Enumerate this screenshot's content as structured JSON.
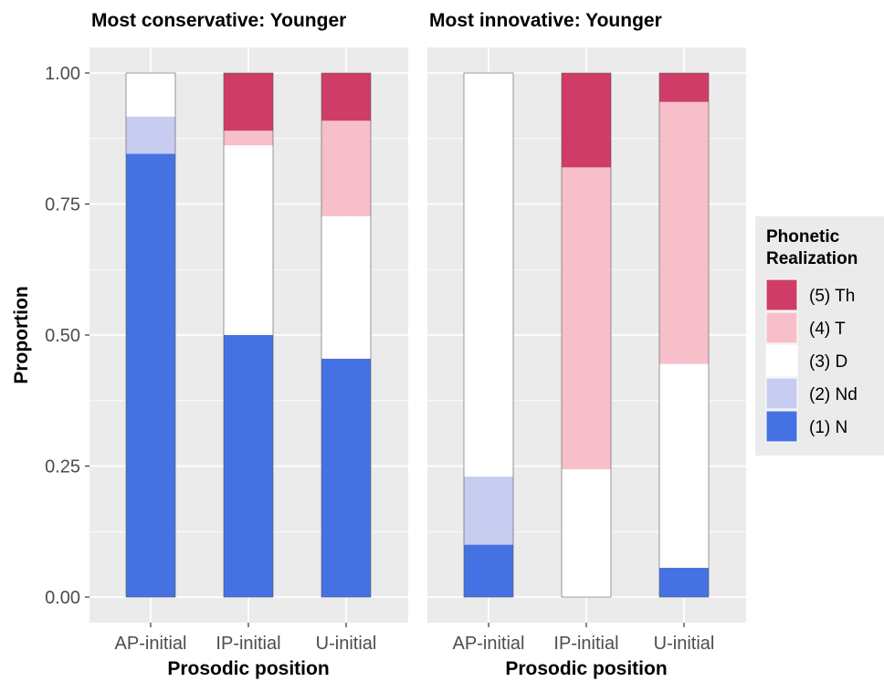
{
  "colors": {
    "panel_bg": "#EBEBEB",
    "grid": "#FFFFFF",
    "N": "#4572E3",
    "Nd": "#C7CCF0",
    "D": "#FFFFFF",
    "T": "#F7BFCA",
    "Th": "#D03C68"
  },
  "y_axis": {
    "label": "Proportion",
    "ticks": [
      "0.00",
      "0.25",
      "0.50",
      "0.75",
      "1.00"
    ]
  },
  "legend": {
    "title_line1": "Phonetic",
    "title_line2": "Realization",
    "items": [
      {
        "label": "(5) Th",
        "key": "Th"
      },
      {
        "label": "(4) T",
        "key": "T"
      },
      {
        "label": "(3) D",
        "key": "D"
      },
      {
        "label": "(2) Nd",
        "key": "Nd"
      },
      {
        "label": "(1) N",
        "key": "N"
      }
    ]
  },
  "chart_data": {
    "type": "bar",
    "stacked": true,
    "ylim": [
      0,
      1
    ],
    "ylabel": "Proportion",
    "legend_position": "right",
    "grid": true,
    "series_order": [
      "N",
      "Nd",
      "D",
      "T",
      "Th"
    ],
    "panels": [
      {
        "title": "Most conservative: Younger",
        "xlabel": "Prosodic position",
        "categories": [
          "AP-initial",
          "IP-initial",
          "U-initial"
        ],
        "series": [
          {
            "name": "(1) N",
            "key": "N",
            "values": [
              0.846,
              0.5,
              0.455
            ]
          },
          {
            "name": "(2) Nd",
            "key": "Nd",
            "values": [
              0.071,
              0.0,
              0.0
            ]
          },
          {
            "name": "(3) D",
            "key": "D",
            "values": [
              0.083,
              0.362,
              0.272
            ]
          },
          {
            "name": "(4) T",
            "key": "T",
            "values": [
              0.0,
              0.028,
              0.182
            ]
          },
          {
            "name": "(5) Th",
            "key": "Th",
            "values": [
              0.0,
              0.11,
              0.091
            ]
          }
        ]
      },
      {
        "title": "Most innovative: Younger",
        "xlabel": "Prosodic position",
        "categories": [
          "AP-initial",
          "IP-initial",
          "U-initial"
        ],
        "series": [
          {
            "name": "(1) N",
            "key": "N",
            "values": [
              0.1,
              0.0,
              0.056
            ]
          },
          {
            "name": "(2) Nd",
            "key": "Nd",
            "values": [
              0.13,
              0.0,
              0.0
            ]
          },
          {
            "name": "(3) D",
            "key": "D",
            "values": [
              0.77,
              0.244,
              0.389
            ]
          },
          {
            "name": "(4) T",
            "key": "T",
            "values": [
              0.0,
              0.576,
              0.5
            ]
          },
          {
            "name": "(5) Th",
            "key": "Th",
            "values": [
              0.0,
              0.18,
              0.055
            ]
          }
        ]
      }
    ]
  }
}
